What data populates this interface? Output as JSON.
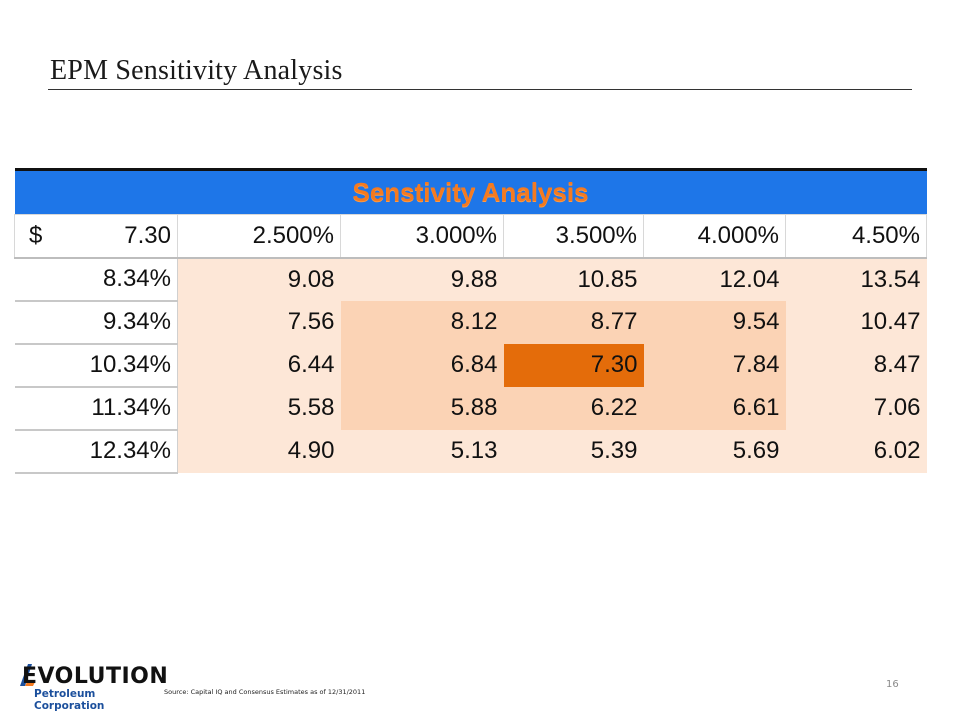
{
  "slide": {
    "title": "EPM Sensitivity Analysis",
    "page_number": "16"
  },
  "table": {
    "title": "Senstivity Analysis",
    "corner": {
      "currency": "$",
      "value": "7.30"
    },
    "columns": [
      "2.500%",
      "3.000%",
      "3.500%",
      "4.000%",
      "4.50%"
    ],
    "rows": [
      {
        "label": "8.34%",
        "cells": [
          "9.08",
          "9.88",
          "10.85",
          "12.04",
          "13.54"
        ]
      },
      {
        "label": "9.34%",
        "cells": [
          "7.56",
          "8.12",
          "8.77",
          "9.54",
          "10.47"
        ]
      },
      {
        "label": "10.34%",
        "cells": [
          "6.44",
          "6.84",
          "7.30",
          "7.84",
          "8.47"
        ]
      },
      {
        "label": "11.34%",
        "cells": [
          "5.58",
          "5.88",
          "6.22",
          "6.61",
          "7.06"
        ]
      },
      {
        "label": "12.34%",
        "cells": [
          "4.90",
          "5.13",
          "5.39",
          "5.69",
          "6.02"
        ]
      }
    ],
    "colors": {
      "header_bg": "#1e76e8",
      "header_text": "#f47a20",
      "light": "#fde7d7",
      "mid": "#fbd3b5",
      "highlight": "#e46c0a"
    }
  },
  "footer": {
    "logo_main": "EVOLUTION",
    "logo_sub": "Petroleum Corporation",
    "source": "Source: Capital IQ and Consensus Estimates as of 12/31/2011"
  }
}
